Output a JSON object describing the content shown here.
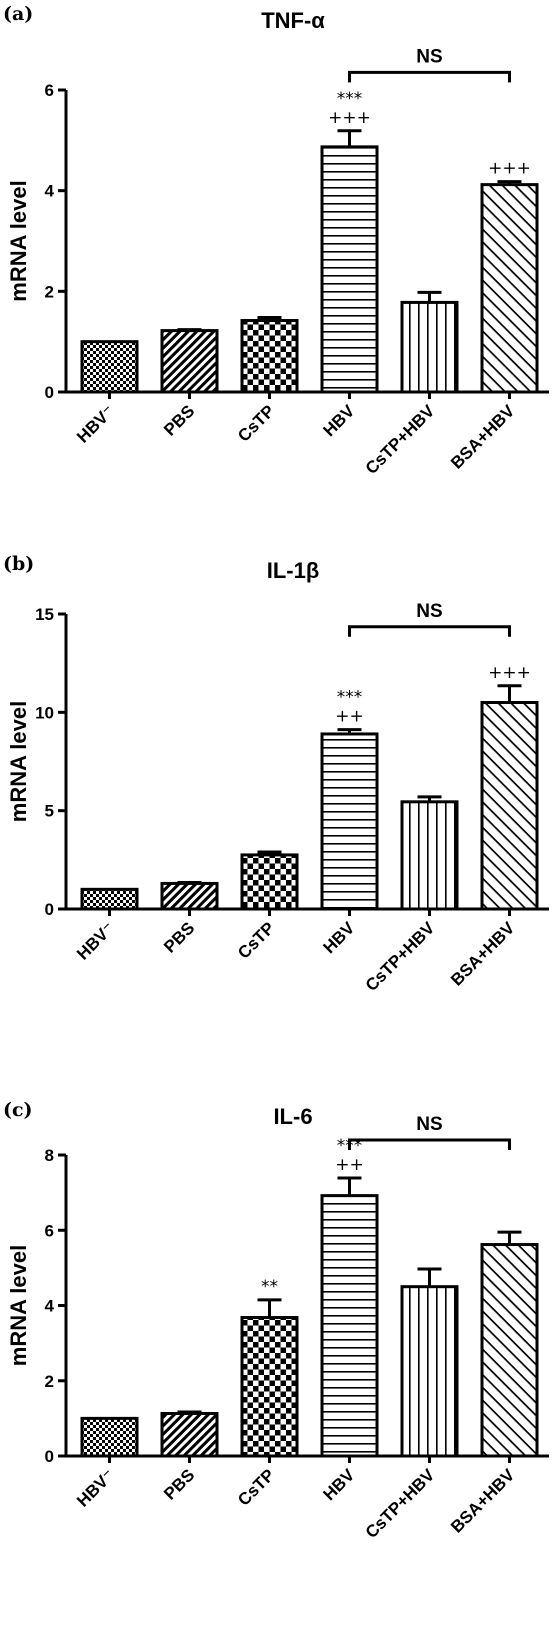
{
  "chart_data": [
    {
      "type": "bar",
      "panel": "(a)",
      "title": "TNF-α",
      "ylabel": "mRNA level",
      "ylim": [
        0,
        6
      ],
      "yticks": [
        0,
        2,
        4,
        6
      ],
      "categories": [
        "HBV⁻",
        "PBS",
        "CsTP",
        "HBV",
        "CsTP+HBV",
        "BSA+HBV"
      ],
      "values": [
        1.0,
        1.22,
        1.42,
        4.87,
        1.78,
        4.12
      ],
      "errors": [
        0.0,
        0.02,
        0.06,
        0.32,
        0.2,
        0.06
      ],
      "annotations": [
        {
          "category": "HBV",
          "lines": [
            "***",
            "+++"
          ]
        },
        {
          "category": "BSA+HBV",
          "lines": [
            "+++"
          ]
        }
      ],
      "comparison": {
        "from": "HBV",
        "to": "BSA+HBV",
        "label": "NS",
        "y": 6.35
      }
    },
    {
      "type": "bar",
      "panel": "(b)",
      "title": "IL-1β",
      "ylabel": "mRNA level",
      "ylim": [
        0,
        15
      ],
      "yticks": [
        0,
        5,
        10,
        15
      ],
      "categories": [
        "HBV⁻",
        "PBS",
        "CsTP",
        "HBV",
        "CsTP+HBV",
        "BSA+HBV"
      ],
      "values": [
        1.0,
        1.3,
        2.75,
        8.9,
        5.45,
        10.5
      ],
      "errors": [
        0.0,
        0.05,
        0.15,
        0.22,
        0.25,
        0.85
      ],
      "annotations": [
        {
          "category": "HBV",
          "lines": [
            "***",
            "++"
          ]
        },
        {
          "category": "BSA+HBV",
          "lines": [
            "+++"
          ]
        }
      ],
      "comparison": {
        "from": "HBV",
        "to": "BSA+HBV",
        "label": "NS",
        "y": 14.35
      }
    },
    {
      "type": "bar",
      "panel": "(c)",
      "title": "IL-6",
      "ylabel": "mRNA level",
      "ylim": [
        0,
        8
      ],
      "yticks": [
        0,
        2,
        4,
        6,
        8
      ],
      "categories": [
        "HBV⁻",
        "PBS",
        "CsTP",
        "HBV",
        "CsTP+HBV",
        "BSA+HBV"
      ],
      "values": [
        1.0,
        1.13,
        3.68,
        6.92,
        4.5,
        5.62
      ],
      "errors": [
        0.0,
        0.04,
        0.47,
        0.47,
        0.47,
        0.33
      ],
      "annotations": [
        {
          "category": "CsTP",
          "lines": [
            "**"
          ]
        },
        {
          "category": "HBV",
          "lines": [
            "***",
            "++"
          ]
        }
      ],
      "comparison": {
        "from": "HBV",
        "to": "BSA+HBV",
        "label": "NS",
        "y": 8.4
      }
    }
  ],
  "colors": {
    "ink": "#000000",
    "background": "#ffffff"
  }
}
